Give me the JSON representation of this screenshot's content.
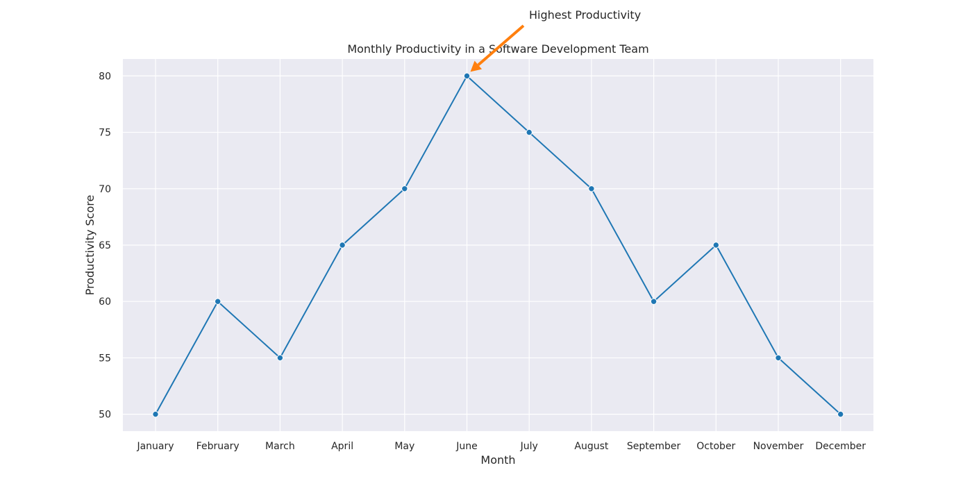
{
  "chart_data": {
    "type": "line",
    "title": "Monthly Productivity in a Software Development Team",
    "xlabel": "Month",
    "ylabel": "Productivity Score",
    "categories": [
      "January",
      "February",
      "March",
      "April",
      "May",
      "June",
      "July",
      "August",
      "September",
      "October",
      "November",
      "December"
    ],
    "series": [
      {
        "values": [
          50,
          60,
          55,
          65,
          70,
          80,
          75,
          70,
          60,
          65,
          55,
          50
        ],
        "color": "#1f77b4",
        "marker": "circle"
      }
    ],
    "ylim": [
      48.5,
      81.5
    ],
    "yticks": [
      50,
      55,
      60,
      65,
      70,
      75,
      80
    ],
    "grid": true,
    "background": "#eaeaf2",
    "annotation": {
      "text": "Highest Productivity",
      "target_category": "June",
      "target_value": 80,
      "arrow_color": "#ff7f0e"
    }
  }
}
